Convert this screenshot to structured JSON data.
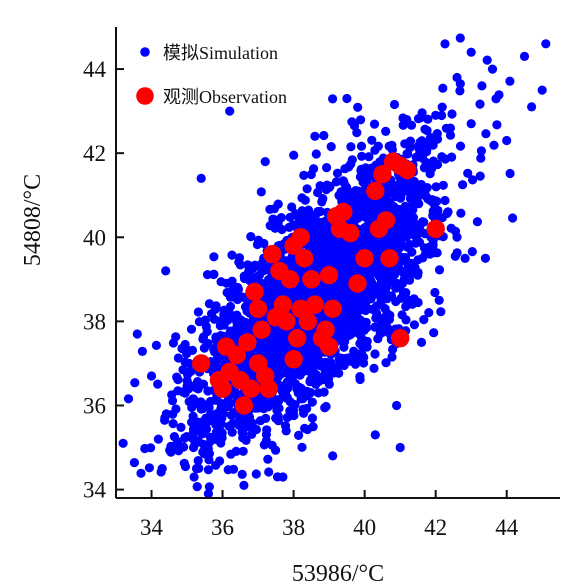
{
  "chart_data": {
    "type": "scatter",
    "xlabel": "53986/°C",
    "ylabel": "54808/°C",
    "xlim": [
      33.0,
      45.5
    ],
    "ylim": [
      33.8,
      45.0
    ],
    "x_ticks": [
      34,
      36,
      38,
      40,
      42,
      44
    ],
    "y_ticks": [
      34,
      36,
      38,
      40,
      42,
      44
    ],
    "grid": false,
    "legend": {
      "placement": "top-left",
      "entries": [
        {
          "label": "模拟Simulation",
          "marker": "small-circle",
          "color": "#0000ff"
        },
        {
          "label": "观测Observation",
          "marker": "large-circle",
          "color": "#ff0000"
        }
      ]
    },
    "series": [
      {
        "name": "模拟Simulation",
        "color": "#0000ff",
        "note": "dense cloud of simulated points, approximately bivariate-normal",
        "mean": [
          38.6,
          38.6
        ],
        "std": [
          1.65,
          1.65
        ],
        "correlation": 0.72,
        "count": 3000,
        "points": [
          [
            33.2,
            35.1
          ],
          [
            33.6,
            37.7
          ],
          [
            34.0,
            36.7
          ],
          [
            34.3,
            34.5
          ],
          [
            34.4,
            39.2
          ],
          [
            35.2,
            34.3
          ],
          [
            35.4,
            41.4
          ],
          [
            35.6,
            33.9
          ],
          [
            36.2,
            43.0
          ],
          [
            36.6,
            34.1
          ],
          [
            37.2,
            41.8
          ],
          [
            37.7,
            34.3
          ],
          [
            38.6,
            42.4
          ],
          [
            39.1,
            34.8
          ],
          [
            39.5,
            43.3
          ],
          [
            40.3,
            35.3
          ],
          [
            40.9,
            36.0
          ],
          [
            41.0,
            35.0
          ],
          [
            41.6,
            37.5
          ],
          [
            42.0,
            42.9
          ],
          [
            42.1,
            38.5
          ],
          [
            42.6,
            43.8
          ],
          [
            43.0,
            42.7
          ],
          [
            43.0,
            44.4
          ],
          [
            43.3,
            43.6
          ],
          [
            43.4,
            39.5
          ],
          [
            43.6,
            44.0
          ],
          [
            44.0,
            42.3
          ],
          [
            44.5,
            44.3
          ],
          [
            44.7,
            43.1
          ],
          [
            45.0,
            43.5
          ],
          [
            45.1,
            44.6
          ]
        ]
      },
      {
        "name": "观测Observation",
        "color": "#ff0000",
        "points": [
          [
            35.4,
            37.0
          ],
          [
            35.9,
            36.6
          ],
          [
            36.0,
            36.4
          ],
          [
            36.1,
            37.4
          ],
          [
            36.2,
            36.8
          ],
          [
            36.4,
            37.2
          ],
          [
            36.5,
            36.6
          ],
          [
            36.6,
            36.0
          ],
          [
            36.7,
            37.5
          ],
          [
            36.8,
            36.4
          ],
          [
            36.9,
            38.7
          ],
          [
            37.0,
            37.0
          ],
          [
            37.0,
            38.3
          ],
          [
            37.1,
            37.8
          ],
          [
            37.2,
            36.7
          ],
          [
            37.3,
            36.4
          ],
          [
            37.4,
            39.6
          ],
          [
            37.5,
            38.1
          ],
          [
            37.6,
            39.2
          ],
          [
            37.7,
            38.4
          ],
          [
            37.8,
            38.0
          ],
          [
            37.9,
            39.0
          ],
          [
            38.0,
            37.1
          ],
          [
            38.0,
            39.8
          ],
          [
            38.1,
            37.6
          ],
          [
            38.2,
            40.0
          ],
          [
            38.2,
            38.3
          ],
          [
            38.3,
            39.5
          ],
          [
            38.4,
            38.0
          ],
          [
            38.5,
            39.0
          ],
          [
            38.6,
            38.4
          ],
          [
            38.8,
            37.6
          ],
          [
            38.9,
            37.8
          ],
          [
            39.0,
            39.1
          ],
          [
            39.0,
            37.4
          ],
          [
            39.1,
            38.3
          ],
          [
            39.2,
            40.5
          ],
          [
            39.3,
            40.2
          ],
          [
            39.4,
            40.6
          ],
          [
            39.6,
            40.1
          ],
          [
            39.8,
            38.9
          ],
          [
            40.0,
            39.5
          ],
          [
            40.3,
            41.1
          ],
          [
            40.4,
            40.2
          ],
          [
            40.5,
            41.5
          ],
          [
            40.6,
            40.4
          ],
          [
            40.7,
            39.5
          ],
          [
            40.8,
            41.8
          ],
          [
            41.0,
            41.7
          ],
          [
            41.0,
            37.6
          ],
          [
            41.2,
            41.6
          ],
          [
            42.0,
            40.2
          ]
        ]
      }
    ]
  }
}
